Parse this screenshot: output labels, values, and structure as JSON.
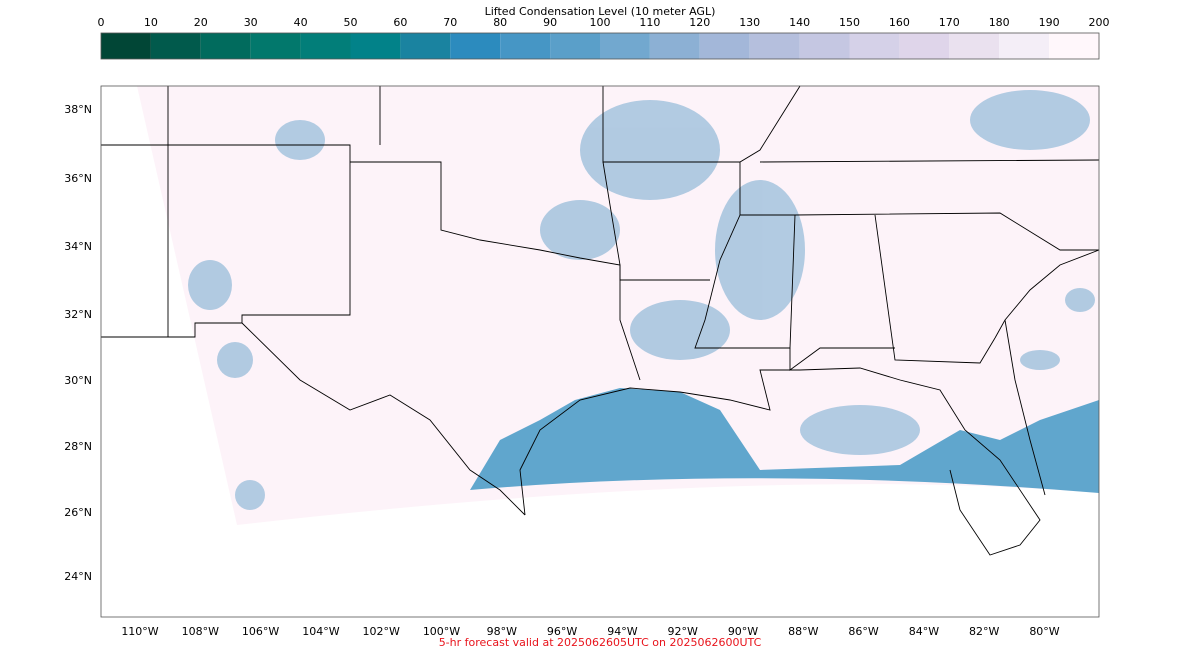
{
  "colorbar": {
    "title": "Lifted Condensation Level (10 meter AGL)",
    "lim": [
      0,
      200
    ],
    "ticks": [
      0,
      10,
      20,
      30,
      40,
      50,
      60,
      70,
      80,
      90,
      100,
      110,
      120,
      130,
      140,
      150,
      160,
      170,
      180,
      190,
      200
    ],
    "colors": [
      "#014636",
      "#015a4c",
      "#016b5d",
      "#02786c",
      "#027e79",
      "#028289",
      "#1a83a0",
      "#2c8bbe",
      "#4696c5",
      "#5a9fc9",
      "#72a8cf",
      "#8cb0d4",
      "#a3b7d9",
      "#b5bfdd",
      "#c5c7e2",
      "#d5d1e8",
      "#dfd5ea",
      "#eae1ef",
      "#f4eef7",
      "#fff7fb"
    ]
  },
  "map": {
    "lat_labels": [
      "38°N",
      "36°N",
      "34°N",
      "32°N",
      "30°N",
      "28°N",
      "26°N",
      "24°N"
    ],
    "lon_labels": [
      "110°W",
      "108°W",
      "106°W",
      "104°W",
      "102°W",
      "100°W",
      "98°W",
      "96°W",
      "94°W",
      "92°W",
      "90°W",
      "88°W",
      "86°W",
      "84°W",
      "82°W",
      "80°W"
    ]
  },
  "footer": "5-hr forecast valid at 2025062605UTC on 2025062600UTC"
}
